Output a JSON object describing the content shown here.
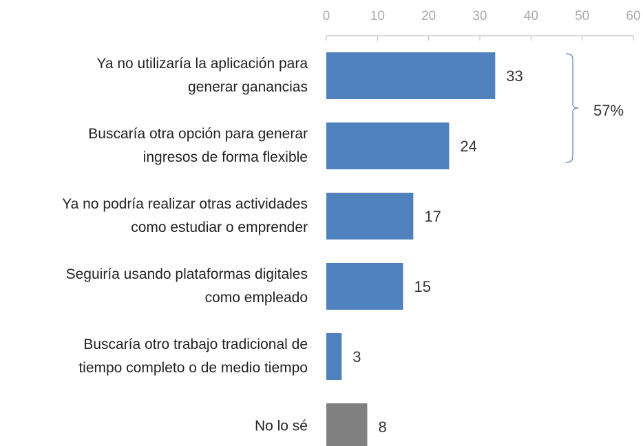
{
  "chart_data": {
    "type": "barh",
    "categories": [
      "Ya no utilizaría la aplicación para\ngenerar ganancias",
      "Buscaría otra opción para generar\ningresos de forma flexible",
      "Ya no podría realizar otras actividades\ncomo estudiar o emprender",
      "Seguiría usando plataformas digitales\ncomo empleado",
      "Buscaría otro trabajo tradicional de\ntiempo completo o de medio tiempo",
      "No lo sé"
    ],
    "values": [
      33,
      24,
      17,
      15,
      3,
      8
    ],
    "colors": [
      "#4f81bd",
      "#4f81bd",
      "#4f81bd",
      "#4f81bd",
      "#4f81bd",
      "#808080"
    ],
    "xlim": [
      0,
      60
    ],
    "xticks": [
      0,
      10,
      20,
      30,
      40,
      50,
      60
    ],
    "grid": false,
    "annotations": [
      {
        "text": "57%",
        "range": [
          0,
          1
        ]
      }
    ]
  }
}
